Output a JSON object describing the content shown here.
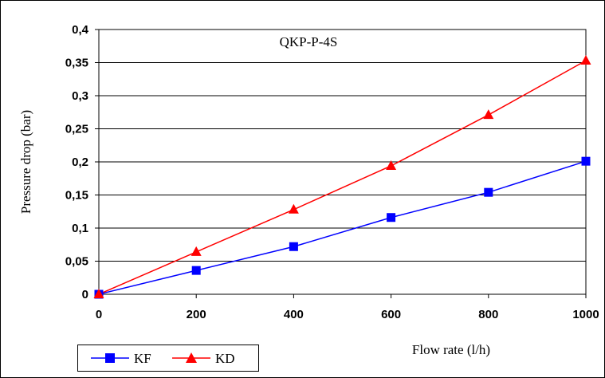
{
  "chart_data": {
    "type": "line",
    "title": "QKP-P-4S",
    "xlabel": "Flow rate (l/h)",
    "ylabel": "Pressure drop (bar)",
    "x": [
      0,
      200,
      400,
      600,
      800,
      1000
    ],
    "xlim": [
      0,
      1000
    ],
    "ylim": [
      0,
      0.4
    ],
    "x_ticks": [
      "0",
      "200",
      "400",
      "600",
      "800",
      "1000"
    ],
    "y_ticks": [
      "0",
      "0,05",
      "0,1",
      "0,15",
      "0,2",
      "0,25",
      "0,3",
      "0,35",
      "0,4"
    ],
    "grid": "horizontal",
    "legend_position": "bottom-left",
    "series": [
      {
        "name": "KF",
        "color": "#0000ff",
        "marker": "square",
        "values": [
          0,
          0.036,
          0.072,
          0.116,
          0.154,
          0.201
        ]
      },
      {
        "name": "KD",
        "color": "#ff0000",
        "marker": "triangle",
        "values": [
          0,
          0.064,
          0.128,
          0.194,
          0.271,
          0.353
        ]
      }
    ]
  }
}
